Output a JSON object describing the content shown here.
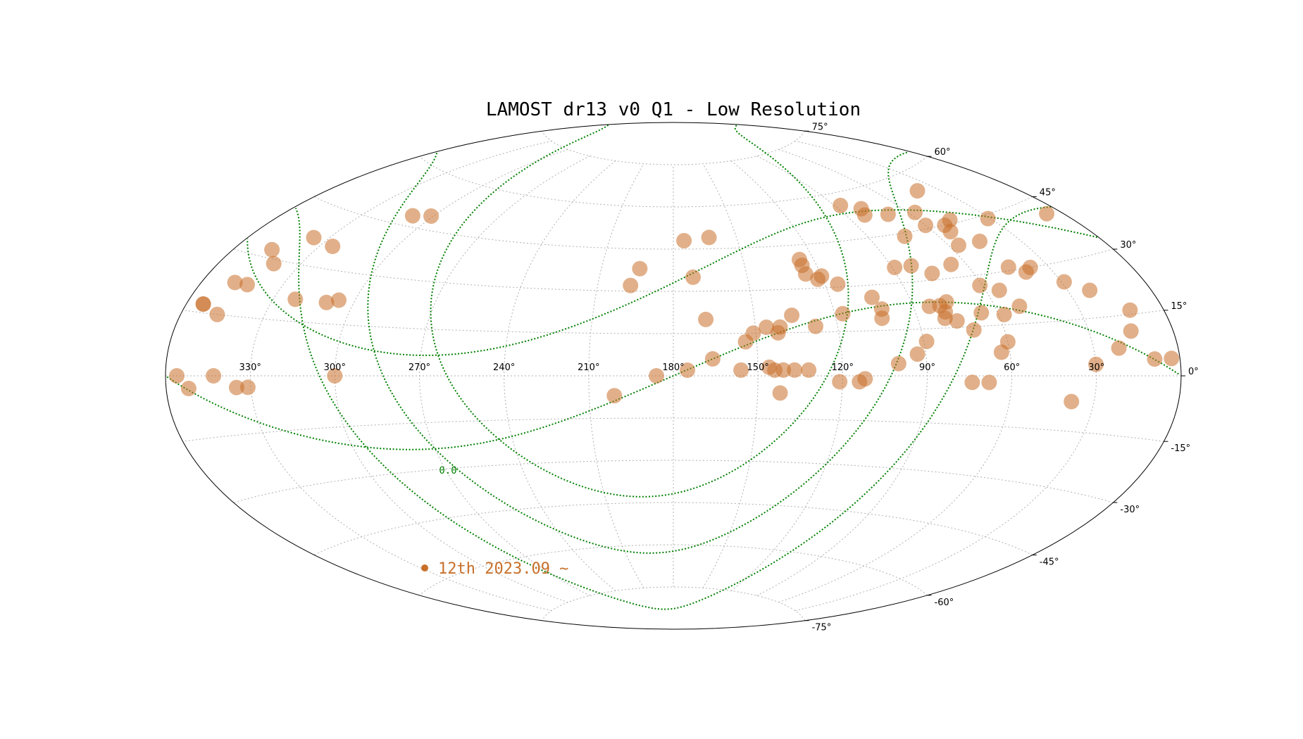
{
  "chart_data": {
    "type": "scatter",
    "projection": "aitoff",
    "title": "LAMOST dr13 v0 Q1 - Low Resolution",
    "ra_ticks": [
      "330°",
      "300°",
      "270°",
      "240°",
      "210°",
      "180°",
      "150°",
      "120°",
      "90°",
      "60°",
      "30°"
    ],
    "dec_ticks": [
      "75°",
      "60°",
      "45°",
      "30°",
      "15°",
      "0°",
      "-15°",
      "-30°",
      "-45°",
      "-60°",
      "-75°"
    ],
    "grid": true,
    "colors": {
      "plates": "#c8702a",
      "curves": "#008000",
      "grid": "#b0b0b0",
      "frame": "#000000"
    },
    "curve_label": "0.0",
    "legend": {
      "label": "12th 2023.09 ~",
      "placement": "lower-left"
    },
    "series": [
      {
        "name": "12th 2023.09 ~",
        "points": [
          {
            "ra": 175,
            "dec": 48
          },
          {
            "ra": 163,
            "dec": 49
          },
          {
            "ra": 194,
            "dec": 38
          },
          {
            "ra": 172,
            "dec": 35
          },
          {
            "ra": 197,
            "dec": 32
          },
          {
            "ra": 168,
            "dec": 20
          },
          {
            "ra": 136,
            "dec": 21
          },
          {
            "ra": 117,
            "dec": 21
          },
          {
            "ra": 141,
            "dec": 17
          },
          {
            "ra": 146,
            "dec": 17
          },
          {
            "ra": 142,
            "dec": 15
          },
          {
            "ra": 128,
            "dec": 17
          },
          {
            "ra": 151,
            "dec": 15
          },
          {
            "ra": 154,
            "dec": 12
          },
          {
            "ra": 166,
            "dec": 6
          },
          {
            "ra": 146,
            "dec": 3
          },
          {
            "ra": 137,
            "dec": 2
          },
          {
            "ra": 141,
            "dec": 2
          },
          {
            "ra": 132,
            "dec": 2
          },
          {
            "ra": 144,
            "dec": 2
          },
          {
            "ra": 156,
            "dec": 2
          },
          {
            "ra": 175,
            "dec": 2
          },
          {
            "ra": 186,
            "dec": 0
          },
          {
            "ra": 201,
            "dec": -7
          },
          {
            "ra": 142,
            "dec": -6
          },
          {
            "ra": 121,
            "dec": -2
          },
          {
            "ra": 114,
            "dec": -2
          },
          {
            "ra": 112,
            "dec": -1
          },
          {
            "ra": 100,
            "dec": 4
          },
          {
            "ra": 93,
            "dec": 7
          },
          {
            "ra": 89,
            "dec": 11
          },
          {
            "ra": 126,
            "dec": 40
          },
          {
            "ra": 126,
            "dec": 38
          },
          {
            "ra": 126,
            "dec": 35
          },
          {
            "ra": 122,
            "dec": 33
          },
          {
            "ra": 120,
            "dec": 34
          },
          {
            "ra": 115,
            "dec": 31
          },
          {
            "ra": 104,
            "dec": 26
          },
          {
            "ra": 102,
            "dec": 22
          },
          {
            "ra": 103,
            "dec": 19
          },
          {
            "ra": 84,
            "dec": 22
          },
          {
            "ra": 80,
            "dec": 22
          },
          {
            "ra": 79,
            "dec": 20
          },
          {
            "ra": 80,
            "dec": 18
          },
          {
            "ra": 76,
            "dec": 17
          },
          {
            "ra": 77,
            "dec": 23
          },
          {
            "ra": 71,
            "dec": 14
          },
          {
            "ra": 66,
            "dec": 19
          },
          {
            "ra": 58,
            "dec": 18
          },
          {
            "ra": 60,
            "dec": 10
          },
          {
            "ra": 63,
            "dec": 7
          },
          {
            "ra": 74,
            "dec": -2
          },
          {
            "ra": 68,
            "dec": -2
          },
          {
            "ra": 38,
            "dec": -7
          },
          {
            "ra": 30,
            "dec": 3
          },
          {
            "ra": 21,
            "dec": 7
          },
          {
            "ra": 15,
            "dec": 11
          },
          {
            "ra": 9,
            "dec": 4
          },
          {
            "ra": 3,
            "dec": 4
          },
          {
            "ra": -6,
            "dec": 17
          },
          {
            "ra": 89,
            "dec": 35
          },
          {
            "ra": 82,
            "dec": 35
          },
          {
            "ra": 76,
            "dec": 32
          },
          {
            "ra": 66,
            "dec": 34
          },
          {
            "ra": 61,
            "dec": 27
          },
          {
            "ra": 55,
            "dec": 25
          },
          {
            "ra": 45,
            "dec": 31
          },
          {
            "ra": 40,
            "dec": 29
          },
          {
            "ra": 37,
            "dec": 30
          },
          {
            "ra": 29,
            "dec": 25
          },
          {
            "ra": 22,
            "dec": 22
          },
          {
            "ra": 12,
            "dec": 16
          },
          {
            "ra": 347,
            "dec": 15
          },
          {
            "ra": 354,
            "dec": 17
          },
          {
            "ra": 356,
            "dec": 0
          },
          {
            "ra": 352,
            "dec": -3
          },
          {
            "ra": 343,
            "dec": 0
          },
          {
            "ra": 335,
            "dec": -3
          },
          {
            "ra": 331,
            "dec": -3
          },
          {
            "ra": 300,
            "dec": 0
          },
          {
            "ra": 322,
            "dec": 21
          },
          {
            "ra": 310,
            "dec": 21
          },
          {
            "ra": 306,
            "dec": 22
          },
          {
            "ra": 343,
            "dec": 23
          },
          {
            "ra": 348,
            "dec": 23
          },
          {
            "ra": 340,
            "dec": 29
          },
          {
            "ra": 325,
            "dec": 36
          },
          {
            "ra": 346,
            "dec": 32
          },
          {
            "ra": 336,
            "dec": 37
          },
          {
            "ra": 309,
            "dec": 48
          },
          {
            "ra": 301,
            "dec": 49
          },
          {
            "ra": 87,
            "dec": 56
          },
          {
            "ra": 79,
            "dec": 54
          },
          {
            "ra": 70,
            "dec": 51
          },
          {
            "ra": 81,
            "dec": 52
          },
          {
            "ra": 60,
            "dec": 46
          },
          {
            "ra": 52,
            "dec": 45
          },
          {
            "ra": 47,
            "dec": 46
          },
          {
            "ra": 53,
            "dec": 43
          },
          {
            "ra": 56,
            "dec": 39
          },
          {
            "ra": 46,
            "dec": 39
          },
          {
            "ra": 74,
            "dec": 44
          },
          {
            "ra": 57,
            "dec": 50
          },
          {
            "ra": 40,
            "dec": 55
          },
          {
            "ra": 31,
            "dec": 44
          },
          {
            "ra": 6,
            "dec": 41
          },
          {
            "ra": 51,
            "dec": 20
          }
        ]
      }
    ]
  }
}
